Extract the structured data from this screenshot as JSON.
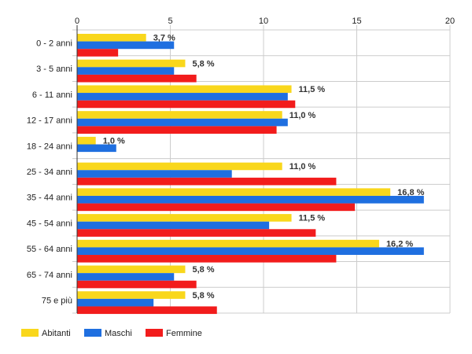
{
  "chart_data": {
    "type": "bar",
    "orientation": "horizontal",
    "categories": [
      "0 - 2 anni",
      "3 - 5 anni",
      "6 - 11 anni",
      "12 - 17 anni",
      "18 - 24 anni",
      "25 - 34 anni",
      "35 - 44 anni",
      "45 - 54 anni",
      "55 - 64 anni",
      "65 - 74 anni",
      "75 e più"
    ],
    "series": [
      {
        "name": "Abitanti",
        "color": "#f9d71c",
        "values": [
          3.7,
          5.8,
          11.5,
          11.0,
          1.0,
          11.0,
          16.8,
          11.5,
          16.2,
          5.8,
          5.8
        ]
      },
      {
        "name": "Maschi",
        "color": "#1f6fe0",
        "values": [
          5.2,
          5.2,
          11.3,
          11.3,
          2.1,
          8.3,
          18.6,
          10.3,
          18.6,
          5.2,
          4.1
        ]
      },
      {
        "name": "Femmine",
        "color": "#f21c1c",
        "values": [
          2.2,
          6.4,
          11.7,
          10.7,
          0,
          13.9,
          14.9,
          12.8,
          13.9,
          6.4,
          7.5
        ]
      }
    ],
    "data_labels": [
      "3,7 %",
      "5,8 %",
      "11,5 %",
      "11,0 %",
      "1,0 %",
      "11,0 %",
      "16,8 %",
      "11,5 %",
      "16,2 %",
      "5,8 %",
      "5,8 %"
    ],
    "x_ticks": [
      "0",
      "5",
      "10",
      "15",
      "20"
    ],
    "xlim": [
      0,
      20
    ],
    "grid": true,
    "legend_position": "bottom-left"
  }
}
